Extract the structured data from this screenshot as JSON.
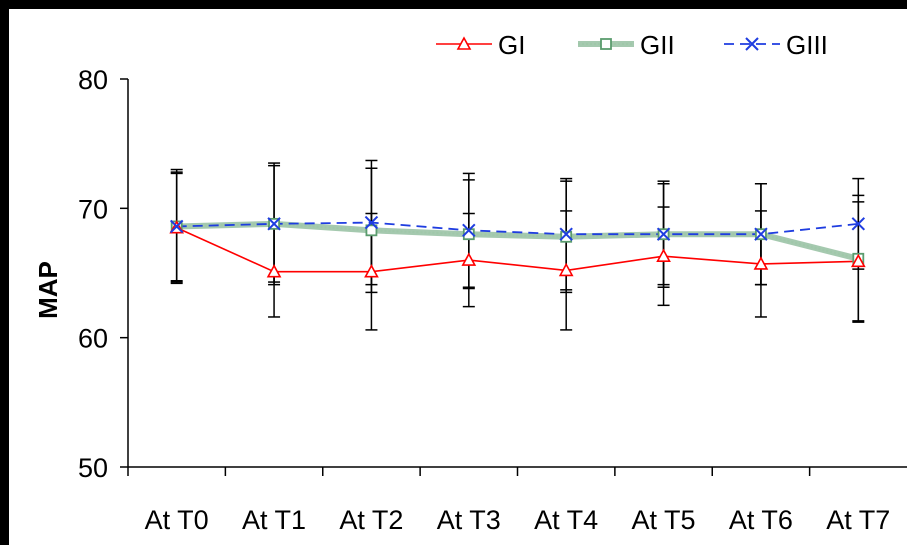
{
  "chart_data": {
    "type": "line",
    "categories": [
      "At T0",
      "At T1",
      "At T2",
      "At T3",
      "At T4",
      "At T5",
      "At T6",
      "At T7"
    ],
    "ylabel": "MAP",
    "xlabel": "",
    "ylim": [
      50,
      80
    ],
    "yticks": [
      50,
      60,
      70,
      80
    ],
    "legend_position": "top-right",
    "grid": false,
    "series": [
      {
        "name": "GI",
        "color": "#ff0000",
        "marker": "triangle",
        "line_style": "solid",
        "values": [
          68.5,
          65.1,
          65.1,
          66.0,
          65.2,
          66.3,
          65.7,
          65.9
        ],
        "error": [
          4.2,
          3.5,
          4.5,
          3.6,
          4.6,
          3.8,
          4.1,
          4.6
        ]
      },
      {
        "name": "GII",
        "color": "#5b9c6e",
        "marker": "square",
        "line_style": "thick",
        "values": [
          68.6,
          68.8,
          68.3,
          68.0,
          67.8,
          68.0,
          68.0,
          66.1
        ],
        "error": [
          4.2,
          4.5,
          4.8,
          4.2,
          4.3,
          3.9,
          3.9,
          4.9
        ]
      },
      {
        "name": "GIII",
        "color": "#1f3de0",
        "marker": "x",
        "line_style": "dashed",
        "values": [
          68.6,
          68.8,
          68.9,
          68.3,
          68.0,
          68.0,
          68.0,
          68.8
        ],
        "error": [
          4.4,
          4.7,
          4.8,
          4.4,
          4.3,
          4.1,
          3.9,
          3.5
        ]
      }
    ]
  }
}
